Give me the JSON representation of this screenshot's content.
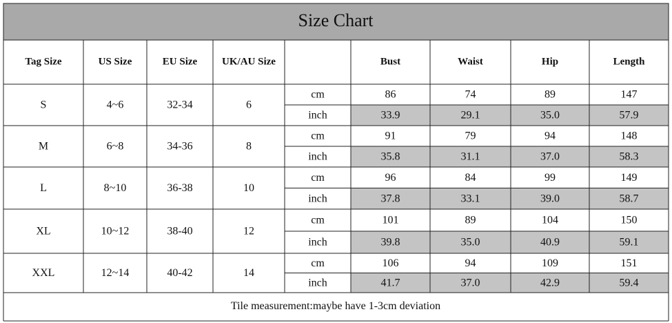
{
  "title": "Size Chart",
  "table": {
    "headers": [
      "Tag Size",
      "US Size",
      "EU Size",
      "UK/AU Size"
    ],
    "measure_headers": [
      "Bust",
      "Waist",
      "Hip",
      "Length"
    ],
    "rows": [
      {
        "tag": "S",
        "us": "4~6",
        "eu": "32-34",
        "uk": "6",
        "units": [
          {
            "unit": "cm",
            "values": [
              "86",
              "74",
              "89",
              "147"
            ]
          },
          {
            "unit": "inch",
            "values": [
              "33.9",
              "29.1",
              "35.0",
              "57.9"
            ]
          }
        ]
      },
      {
        "tag": "M",
        "us": "6~8",
        "eu": "34-36",
        "uk": "8",
        "units": [
          {
            "unit": "cm",
            "values": [
              "91",
              "79",
              "94",
              "148"
            ]
          },
          {
            "unit": "inch",
            "values": [
              "35.8",
              "31.1",
              "37.0",
              "58.3"
            ]
          }
        ]
      },
      {
        "tag": "L",
        "us": "8~10",
        "eu": "36-38",
        "uk": "10",
        "units": [
          {
            "unit": "cm",
            "values": [
              "96",
              "84",
              "99",
              "149"
            ]
          },
          {
            "unit": "inch",
            "values": [
              "37.8",
              "33.1",
              "39.0",
              "58.7"
            ]
          }
        ]
      },
      {
        "tag": "XL",
        "us": "10~12",
        "eu": "38-40",
        "uk": "12",
        "units": [
          {
            "unit": "cm",
            "values": [
              "101",
              "89",
              "104",
              "150"
            ]
          },
          {
            "unit": "inch",
            "values": [
              "39.8",
              "35.0",
              "40.9",
              "59.1"
            ]
          }
        ]
      },
      {
        "tag": "XXL",
        "us": "12~14",
        "eu": "40-42",
        "uk": "14",
        "units": [
          {
            "unit": "cm",
            "values": [
              "106",
              "94",
              "109",
              "151"
            ]
          },
          {
            "unit": "inch",
            "values": [
              "41.7",
              "37.0",
              "42.9",
              "59.4"
            ]
          }
        ]
      }
    ],
    "note": "Tile measurement:maybe have 1-3cm deviation"
  }
}
